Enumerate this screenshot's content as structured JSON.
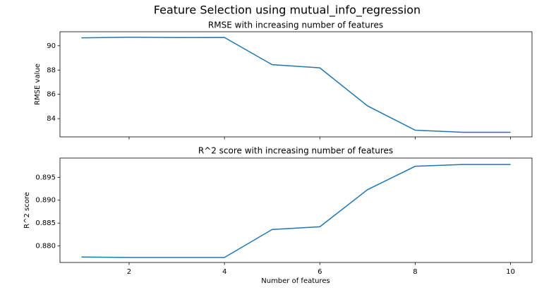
{
  "suptitle": "Feature Selection using mutual_info_regression",
  "chart_data": [
    {
      "type": "line",
      "title": "RMSE with increasing number of features",
      "xlabel": "",
      "ylabel": "RMSE value",
      "x": [
        1,
        2,
        3,
        4,
        5,
        6,
        7,
        8,
        9,
        10
      ],
      "y": [
        90.65,
        90.7,
        90.67,
        90.68,
        88.44,
        88.18,
        85.05,
        83.05,
        82.88,
        82.88
      ],
      "xlim": [
        0.55,
        10.45
      ],
      "ylim": [
        82.5,
        91.15
      ],
      "xticks": [
        2,
        4,
        6,
        8,
        10
      ],
      "yticks": [
        84,
        86,
        88,
        90
      ],
      "ytick_labels": [
        "84",
        "86",
        "88",
        "90"
      ],
      "show_xtick_labels": false,
      "color": "#1f77b4",
      "grid": false
    },
    {
      "type": "line",
      "title": "R^2 score with increasing number of features",
      "xlabel": "Number of features",
      "ylabel": "R^2 score",
      "x": [
        1,
        2,
        3,
        4,
        5,
        6,
        7,
        8,
        9,
        10
      ],
      "y": [
        0.8776,
        0.8775,
        0.8775,
        0.8775,
        0.8836,
        0.8842,
        0.8923,
        0.8974,
        0.8978,
        0.8978
      ],
      "xlim": [
        0.55,
        10.45
      ],
      "ylim": [
        0.8764,
        0.8992
      ],
      "xticks": [
        2,
        4,
        6,
        8,
        10
      ],
      "xtick_labels": [
        "2",
        "4",
        "6",
        "8",
        "10"
      ],
      "yticks": [
        0.88,
        0.885,
        0.89,
        0.895
      ],
      "ytick_labels": [
        "0.880",
        "0.885",
        "0.890",
        "0.895"
      ],
      "show_xtick_labels": true,
      "color": "#1f77b4",
      "grid": false
    }
  ]
}
